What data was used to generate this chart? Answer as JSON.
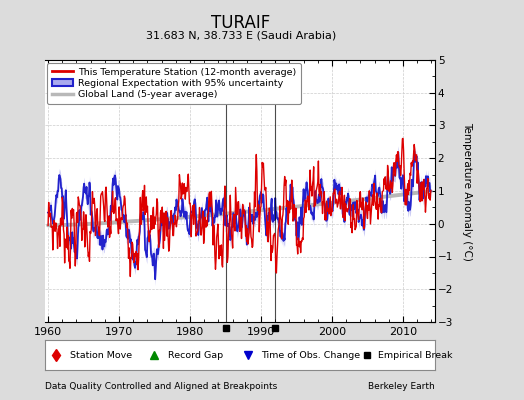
{
  "title": "TURAIF",
  "subtitle": "31.683 N, 38.733 E (Saudi Arabia)",
  "ylabel": "Temperature Anomaly (°C)",
  "xlabel_left": "Data Quality Controlled and Aligned at Breakpoints",
  "xlabel_right": "Berkeley Earth",
  "ylim": [
    -3,
    5
  ],
  "xlim": [
    1959.5,
    2014.5
  ],
  "xticks": [
    1960,
    1970,
    1980,
    1990,
    2000,
    2010
  ],
  "yticks": [
    -3,
    -2,
    -1,
    0,
    1,
    2,
    3,
    4,
    5
  ],
  "bg_color": "#dcdcdc",
  "plot_bg_color": "#ffffff",
  "empirical_breaks": [
    1985,
    1992
  ],
  "station_color": "#dd0000",
  "regional_color": "#2222cc",
  "regional_fill_color": "#aaaaee",
  "global_color": "#b8b8b8",
  "seed": 42
}
